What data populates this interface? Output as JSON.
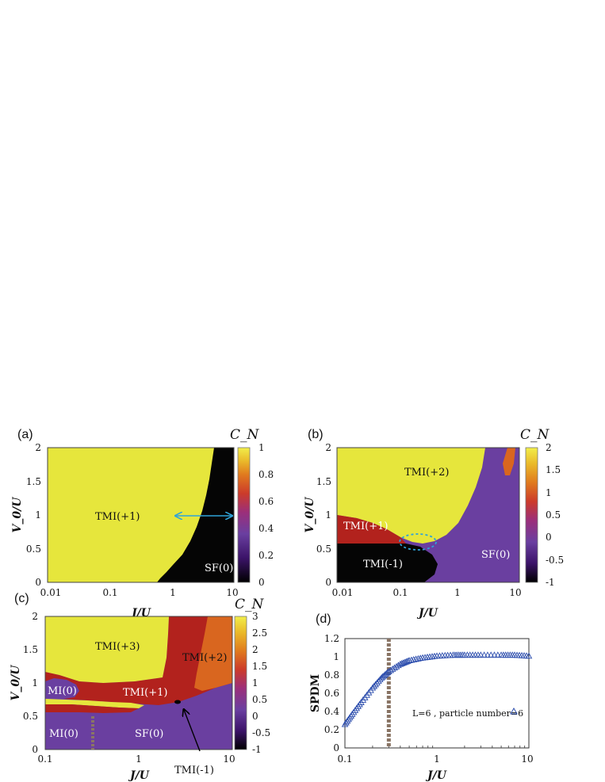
{
  "colors": {
    "yellow": "#e6e63c",
    "black": "#050505",
    "purple": "#6a3fa0",
    "red": "#b2221d",
    "orange": "#d9661f",
    "arrow_cyan": "#2fa3d8",
    "dashed_line": "#8a7565",
    "spdm_marker": "#2e4fae",
    "colorbar": [
      "#000000",
      "#3b1368",
      "#6a3fa0",
      "#9b2f7a",
      "#cc3b2a",
      "#e07a1e",
      "#eab92a",
      "#f2ee4a"
    ]
  },
  "panels": {
    "a": {
      "label": "(a)",
      "colorbar_title": "C_N",
      "colorbar_ticks": [
        "1",
        "0.8",
        "0.6",
        "0.4",
        "0.2",
        "0"
      ],
      "xticks": [
        "0.01",
        "0.1",
        "1",
        "10"
      ],
      "yticks": [
        "2",
        "1.5",
        "1",
        "0.5",
        "0"
      ],
      "xlabel": "J/U",
      "ylabel": "V_0/U",
      "phases": [
        "TMI(+1)",
        "SF(0)"
      ]
    },
    "b": {
      "label": "(b)",
      "colorbar_title": "C_N",
      "colorbar_ticks": [
        "2",
        "1.5",
        "1",
        "0.5",
        "0",
        "-0.5",
        "-1"
      ],
      "xticks": [
        "0.01",
        "0.1",
        "1",
        "10"
      ],
      "yticks": [
        "2",
        "1.5",
        "1",
        "0.5",
        "0"
      ],
      "xlabel": "J/U",
      "ylabel": "V_0/U",
      "phases": [
        "TMI(+2)",
        "TMI(+1)",
        "TMI(-1)",
        "SF(0)"
      ]
    },
    "c": {
      "label": "(c)",
      "colorbar_title": "C_N",
      "colorbar_ticks": [
        "3",
        "2.5",
        "2",
        "1.5",
        "1",
        "0.5",
        "0",
        "-0.5",
        "-1"
      ],
      "xticks": [
        "0.1",
        "1",
        "10"
      ],
      "yticks": [
        "2",
        "1.5",
        "1",
        "0.5",
        "0"
      ],
      "xlabel": "J/U",
      "ylabel": "V_0/U",
      "phases": [
        "TMI(+3)",
        "TMI(+2)",
        "MI(0)",
        "TMI(+1)",
        "MI(0)",
        "SF(0)",
        "TMI(-1)"
      ]
    },
    "d": {
      "label": "(d)",
      "xticks": [
        "0.1",
        "1",
        "10"
      ],
      "yticks": [
        "1.2",
        "1",
        "0.8",
        "0.6",
        "0.4",
        "0.2",
        "0"
      ],
      "xlabel": "J/U",
      "ylabel": "SPDM",
      "legend": "L=6 , particle number=6"
    }
  },
  "chart_data": [
    {
      "panel": "a",
      "type": "heatmap",
      "xscale": "log",
      "xlim": [
        0.01,
        10
      ],
      "ylim": [
        0,
        2
      ],
      "colorbar_range": [
        0,
        1
      ],
      "regions": [
        {
          "label": "TMI(+1)",
          "value": 1
        },
        {
          "label": "SF(0)",
          "value": 0
        }
      ],
      "boundary": {
        "x": [
          0.7,
          1.0,
          1.5,
          2.0,
          3.0,
          4.0,
          5.0,
          5.5
        ],
        "y": [
          0,
          0.22,
          0.45,
          0.7,
          1.05,
          1.45,
          1.8,
          2.0
        ]
      },
      "annotation": {
        "type": "double-arrow",
        "x": [
          1.0,
          10
        ],
        "y": 1.0
      }
    },
    {
      "panel": "b",
      "type": "heatmap",
      "xscale": "log",
      "xlim": [
        0.01,
        10
      ],
      "ylim": [
        0,
        2
      ],
      "colorbar_range": [
        -1,
        2
      ],
      "regions": [
        {
          "label": "TMI(+2)",
          "value": 2
        },
        {
          "label": "TMI(+1)",
          "value": 1
        },
        {
          "label": "TMI(-1)",
          "value": -1
        },
        {
          "label": "SF(0)",
          "value": 0
        }
      ],
      "annotation": {
        "type": "dashed-ellipse",
        "x": 0.18,
        "y": 0.75
      }
    },
    {
      "panel": "c",
      "type": "heatmap",
      "xscale": "log",
      "xlim": [
        0.1,
        10
      ],
      "ylim": [
        0,
        2
      ],
      "colorbar_range": [
        -1,
        3
      ],
      "regions": [
        {
          "label": "TMI(+3)",
          "value": 3
        },
        {
          "label": "TMI(+2)",
          "value": 2
        },
        {
          "label": "TMI(+1)",
          "value": 1
        },
        {
          "label": "MI(0)",
          "value": 0
        },
        {
          "label": "SF(0)",
          "value": 0
        },
        {
          "label": "TMI(-1)",
          "value": -1
        }
      ],
      "annotation": {
        "type": "dashed-vline",
        "x": 0.3
      }
    },
    {
      "panel": "d",
      "type": "scatter",
      "xscale": "log",
      "xlim": [
        0.1,
        10
      ],
      "ylim": [
        0,
        1.2
      ],
      "series": [
        {
          "name": "L=6 , particle number=6",
          "x": [
            0.1,
            0.12,
            0.15,
            0.2,
            0.25,
            0.3,
            0.4,
            0.5,
            0.7,
            1,
            1.5,
            2,
            3,
            5,
            7,
            10
          ],
          "y": [
            0.26,
            0.37,
            0.5,
            0.66,
            0.77,
            0.84,
            0.92,
            0.96,
            0.99,
            1.01,
            1.02,
            1.02,
            1.02,
            1.02,
            1.02,
            1.01
          ]
        }
      ],
      "annotation": {
        "type": "dashed-vline",
        "x": 0.3
      }
    }
  ]
}
